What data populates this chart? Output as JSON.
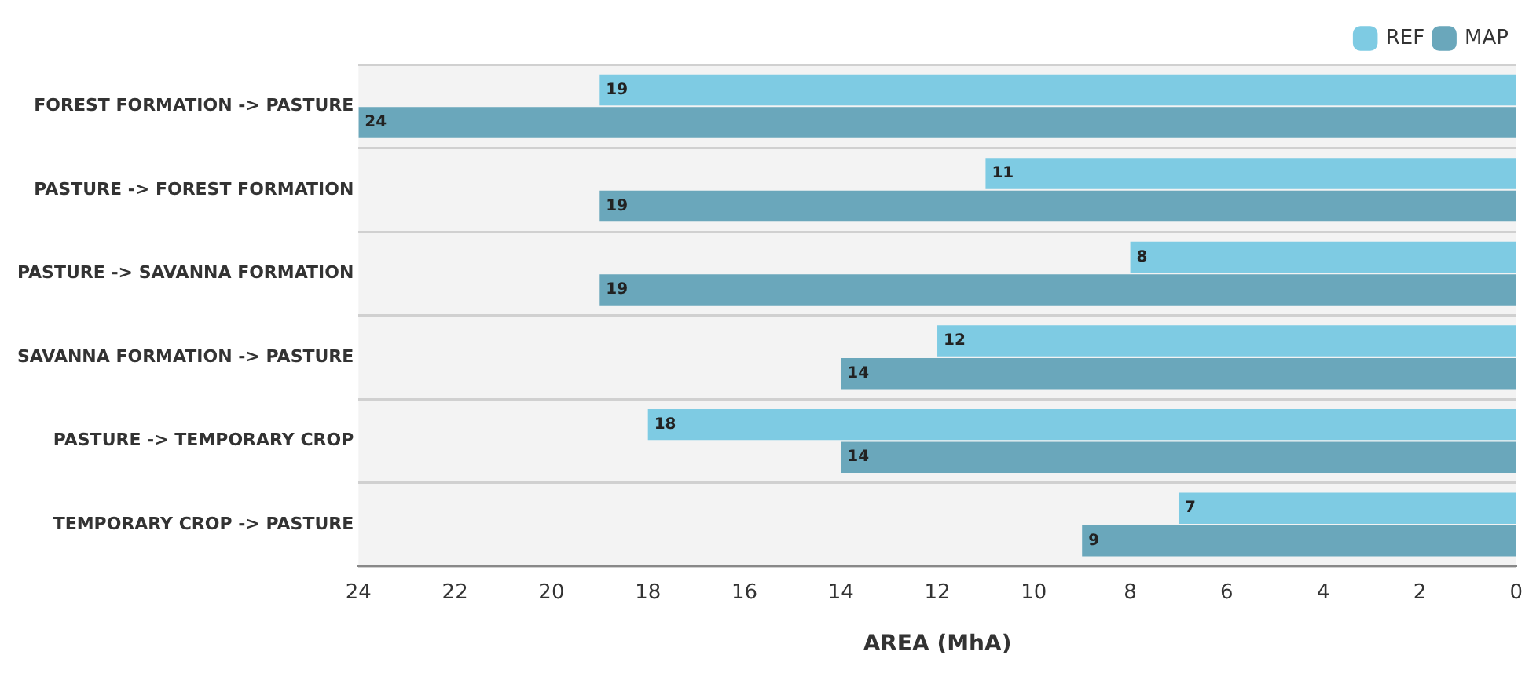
{
  "chart_data": {
    "type": "bar",
    "orientation": "horizontal",
    "xlabel": "AREA (MhA)",
    "categories": [
      "FOREST FORMATION -> PASTURE",
      "PASTURE -> FOREST FORMATION",
      "PASTURE -> SAVANNA FORMATION",
      "SAVANNA FORMATION -> PASTURE",
      "PASTURE -> TEMPORARY CROP",
      "TEMPORARY CROP -> PASTURE"
    ],
    "series": [
      {
        "name": "REF",
        "color": "#7ecbe3",
        "values": [
          19,
          11,
          8,
          12,
          18,
          7
        ]
      },
      {
        "name": "MAP",
        "color": "#6aa7bb",
        "values": [
          24,
          19,
          19,
          14,
          14,
          9
        ]
      }
    ],
    "xlim": [
      24,
      0
    ],
    "xticks": [
      24,
      22,
      20,
      18,
      16,
      14,
      12,
      10,
      8,
      6,
      4,
      2,
      0
    ],
    "grid": "y",
    "legend": "top right",
    "data_labels": true
  }
}
